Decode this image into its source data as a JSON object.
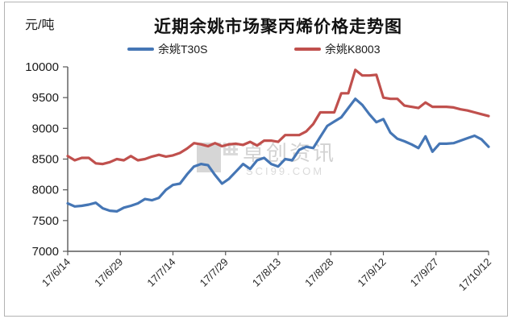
{
  "title": "近期余姚市场聚丙烯价格走势图",
  "unit_label": "元/吨",
  "watermark": {
    "name": "卓创资讯",
    "site": "SCI99.COM"
  },
  "chart_data": {
    "type": "line",
    "title": "近期余姚市场聚丙烯价格走势图",
    "ylabel": "元/吨",
    "xlabel": "",
    "ylim": [
      7000,
      10000
    ],
    "y_ticks": [
      7000,
      7500,
      8000,
      8500,
      9000,
      9500,
      10000
    ],
    "x_tick_labels": [
      "17/6/14",
      "17/6/29",
      "17/7/14",
      "17/7/29",
      "17/8/13",
      "17/8/28",
      "17/9/12",
      "17/9/27",
      "17/10/12"
    ],
    "x_tick_days": [
      0,
      15,
      30,
      45,
      60,
      75,
      90,
      105,
      120
    ],
    "grid": false,
    "legend_position": "top-center",
    "x_days": [
      0,
      2,
      4,
      6,
      8,
      10,
      12,
      14,
      16,
      18,
      20,
      22,
      24,
      26,
      28,
      30,
      32,
      34,
      36,
      38,
      40,
      42,
      44,
      46,
      48,
      50,
      52,
      54,
      56,
      58,
      60,
      62,
      64,
      66,
      68,
      70,
      72,
      74,
      76,
      78,
      80,
      82,
      84,
      86,
      88,
      90,
      92,
      94,
      96,
      98,
      100,
      102,
      104,
      106,
      108,
      110,
      112,
      114,
      116,
      118,
      120
    ],
    "series": [
      {
        "name": "余姚T30S",
        "color": "#4576b5",
        "values": [
          7780,
          7730,
          7740,
          7760,
          7790,
          7700,
          7660,
          7650,
          7710,
          7740,
          7780,
          7850,
          7830,
          7870,
          8000,
          8080,
          8100,
          8250,
          8380,
          8420,
          8400,
          8240,
          8100,
          8180,
          8300,
          8420,
          8340,
          8480,
          8520,
          8420,
          8380,
          8500,
          8480,
          8650,
          8700,
          8680,
          8860,
          9040,
          9110,
          9180,
          9330,
          9480,
          9380,
          9230,
          9100,
          9150,
          8930,
          8830,
          8790,
          8740,
          8680,
          8870,
          8620,
          8750,
          8750,
          8760,
          8800,
          8840,
          8880,
          8820,
          8700
        ]
      },
      {
        "name": "余姚K8003",
        "color": "#c0504d",
        "values": [
          8550,
          8480,
          8520,
          8520,
          8430,
          8420,
          8450,
          8500,
          8480,
          8550,
          8480,
          8500,
          8540,
          8570,
          8540,
          8560,
          8600,
          8670,
          8760,
          8740,
          8710,
          8760,
          8710,
          8740,
          8750,
          8730,
          8780,
          8720,
          8800,
          8800,
          8780,
          8890,
          8890,
          8890,
          8950,
          9070,
          9260,
          9260,
          9260,
          9570,
          9570,
          9950,
          9860,
          9860,
          9870,
          9500,
          9480,
          9480,
          9370,
          9350,
          9330,
          9420,
          9350,
          9350,
          9350,
          9340,
          9310,
          9290,
          9260,
          9230,
          9200
        ]
      }
    ]
  }
}
